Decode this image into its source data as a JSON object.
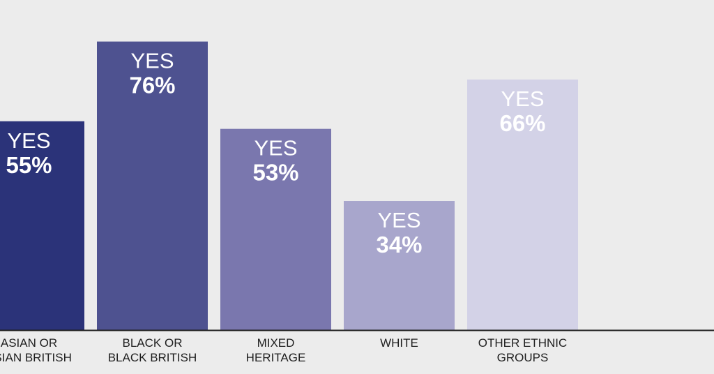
{
  "chart_data": {
    "type": "bar",
    "categories": [
      [
        "ASIAN OR",
        "ASIAN BRITISH"
      ],
      [
        "BLACK OR",
        "BLACK BRITISH"
      ],
      [
        "MIXED",
        "HERITAGE"
      ],
      [
        "WHITE"
      ],
      [
        "OTHER ETHNIC",
        "GROUPS"
      ]
    ],
    "values": [
      55,
      76,
      53,
      34,
      66
    ],
    "bar_prefix": "YES",
    "value_suffix": "%",
    "ylim": [
      0,
      100
    ],
    "colors": [
      "#2b3379",
      "#4e5290",
      "#7a77ae",
      "#a8a6cc",
      "#d3d2e7"
    ],
    "label_colors": [
      "#ffffff",
      "#ffffff",
      "#ffffff",
      "#ffffff",
      "#ffffff"
    ],
    "axis_color": "#1e1e1e",
    "background": "#ececec"
  }
}
